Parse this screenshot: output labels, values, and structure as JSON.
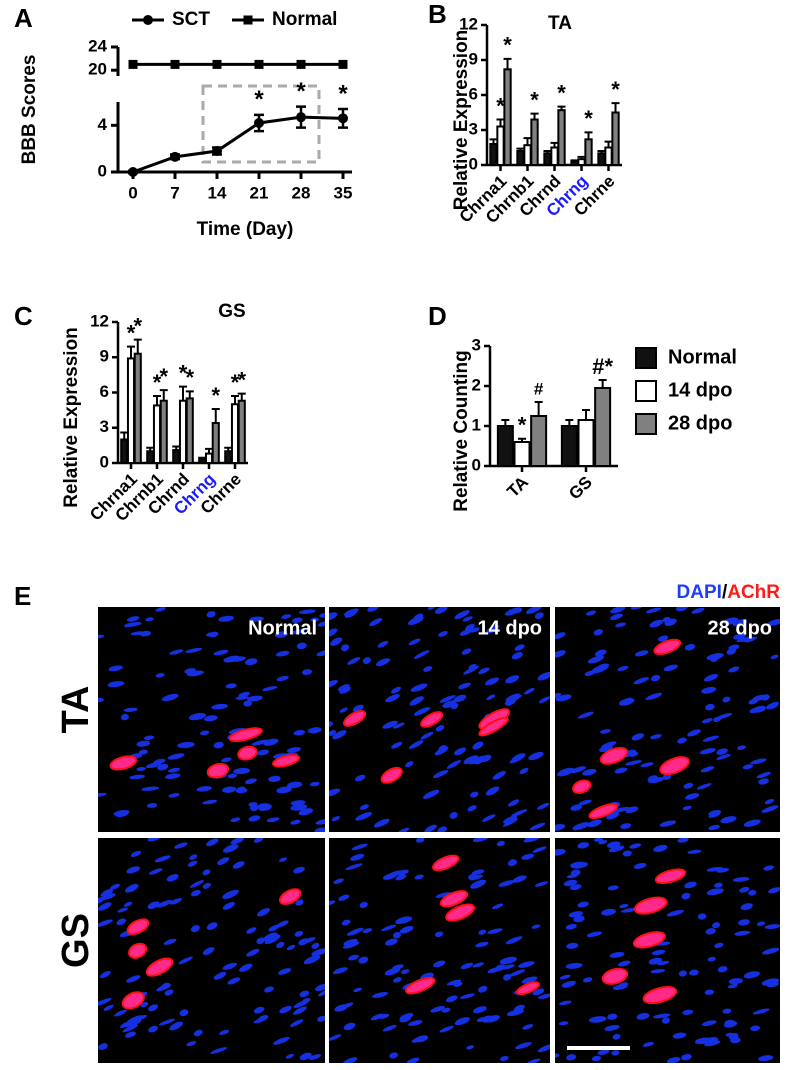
{
  "chart_data": [
    {
      "panel": "A",
      "type": "line",
      "xlabel": "Time (Day)",
      "ylabel": "BBB Scores",
      "x": [
        0,
        7,
        14,
        21,
        28,
        35
      ],
      "xlim": [
        -2.5,
        36.5
      ],
      "xticks": [
        0,
        7,
        14,
        21,
        28,
        35
      ],
      "ylim": [
        0,
        24
      ],
      "y_break": [
        6,
        19
      ],
      "yticks": [
        0,
        4,
        20,
        24
      ],
      "series": [
        {
          "name": "SCT",
          "color": "#000000",
          "marker": "circle",
          "values": [
            0,
            1.3,
            1.8,
            4.2,
            4.7,
            4.6
          ],
          "errors": [
            0.1,
            0.2,
            0.3,
            0.7,
            0.9,
            0.8
          ],
          "sig": [
            null,
            null,
            null,
            "*",
            "*",
            "*"
          ]
        },
        {
          "name": "Normal",
          "color": "#000000",
          "marker": "square",
          "values": [
            21,
            21,
            21,
            21,
            21,
            21
          ]
        }
      ]
    },
    {
      "panel": "B",
      "type": "bar",
      "title": "TA",
      "ylabel": "Relative Expression",
      "categories": [
        "Chrna1",
        "Chrnb1",
        "Chrnd",
        "Chrng",
        "Chrne"
      ],
      "category_colors": [
        "#000000",
        "#000000",
        "#000000",
        "#1a1aff",
        "#000000"
      ],
      "ylim": [
        0,
        12
      ],
      "yticks": [
        0,
        3,
        6,
        9,
        12
      ],
      "series": [
        {
          "color": "#111111",
          "values": [
            1.8,
            1.2,
            1.0,
            0.3,
            1.0
          ],
          "errors": [
            0.4,
            0.2,
            0.2,
            0.1,
            0.2
          ],
          "sig": [
            null,
            null,
            null,
            null,
            null
          ]
        },
        {
          "color": "#ffffff",
          "values": [
            3.3,
            1.7,
            1.5,
            0.5,
            1.5
          ],
          "errors": [
            0.6,
            0.6,
            0.4,
            0.2,
            0.5
          ],
          "sig": [
            "*",
            null,
            null,
            null,
            null
          ]
        },
        {
          "color": "#808080",
          "values": [
            8.2,
            3.9,
            4.7,
            2.2,
            4.5
          ],
          "errors": [
            0.9,
            0.5,
            0.3,
            0.6,
            0.8
          ],
          "sig": [
            "*",
            "*",
            "*",
            "*",
            "*"
          ]
        }
      ]
    },
    {
      "panel": "C",
      "type": "bar",
      "title": "GS",
      "ylabel": "Relative Expression",
      "categories": [
        "Chrna1",
        "Chrnb1",
        "Chrnd",
        "Chrng",
        "Chrne"
      ],
      "category_colors": [
        "#000000",
        "#000000",
        "#000000",
        "#1a1aff",
        "#000000"
      ],
      "ylim": [
        0,
        12
      ],
      "yticks": [
        0,
        3,
        6,
        9,
        12
      ],
      "series": [
        {
          "color": "#111111",
          "values": [
            2.0,
            1.0,
            1.1,
            0.35,
            1.0
          ],
          "errors": [
            0.6,
            0.3,
            0.3,
            0.1,
            0.3
          ],
          "sig": [
            null,
            null,
            null,
            null,
            null
          ]
        },
        {
          "color": "#ffffff",
          "values": [
            8.9,
            4.9,
            5.3,
            0.8,
            5.0
          ],
          "errors": [
            1.0,
            0.8,
            1.2,
            0.4,
            0.7
          ],
          "sig": [
            "*",
            "*",
            "*",
            null,
            "*"
          ]
        },
        {
          "color": "#808080",
          "values": [
            9.3,
            5.3,
            5.5,
            3.4,
            5.3
          ],
          "errors": [
            1.2,
            0.9,
            0.6,
            1.2,
            0.6
          ],
          "sig": [
            "*",
            "*",
            "*",
            "*",
            "*"
          ]
        }
      ]
    },
    {
      "panel": "D",
      "type": "bar",
      "ylabel": "Relative Counting",
      "categories": [
        "TA",
        "GS"
      ],
      "category_colors": [
        "#000000",
        "#000000"
      ],
      "ylim": [
        0,
        3
      ],
      "yticks": [
        0,
        1,
        2,
        3
      ],
      "series": [
        {
          "name": "Normal",
          "color": "#111111",
          "values": [
            1.0,
            1.0
          ],
          "errors": [
            0.15,
            0.15
          ],
          "sig": [
            null,
            null
          ]
        },
        {
          "name": "14 dpo",
          "color": "#ffffff",
          "values": [
            0.6,
            1.15
          ],
          "errors": [
            0.08,
            0.25
          ],
          "sig": [
            "*",
            null
          ]
        },
        {
          "name": "28 dpo",
          "color": "#808080",
          "values": [
            1.25,
            1.95
          ],
          "errors": [
            0.35,
            0.2
          ],
          "sig": [
            "#",
            "#*"
          ]
        }
      ]
    }
  ],
  "image_panel": {
    "panel": "E",
    "legend": [
      "DAPI",
      "/",
      "AChR"
    ],
    "columns": [
      "Normal",
      "14 dpo",
      "28 dpo"
    ],
    "rows": [
      "TA",
      "GS"
    ]
  }
}
